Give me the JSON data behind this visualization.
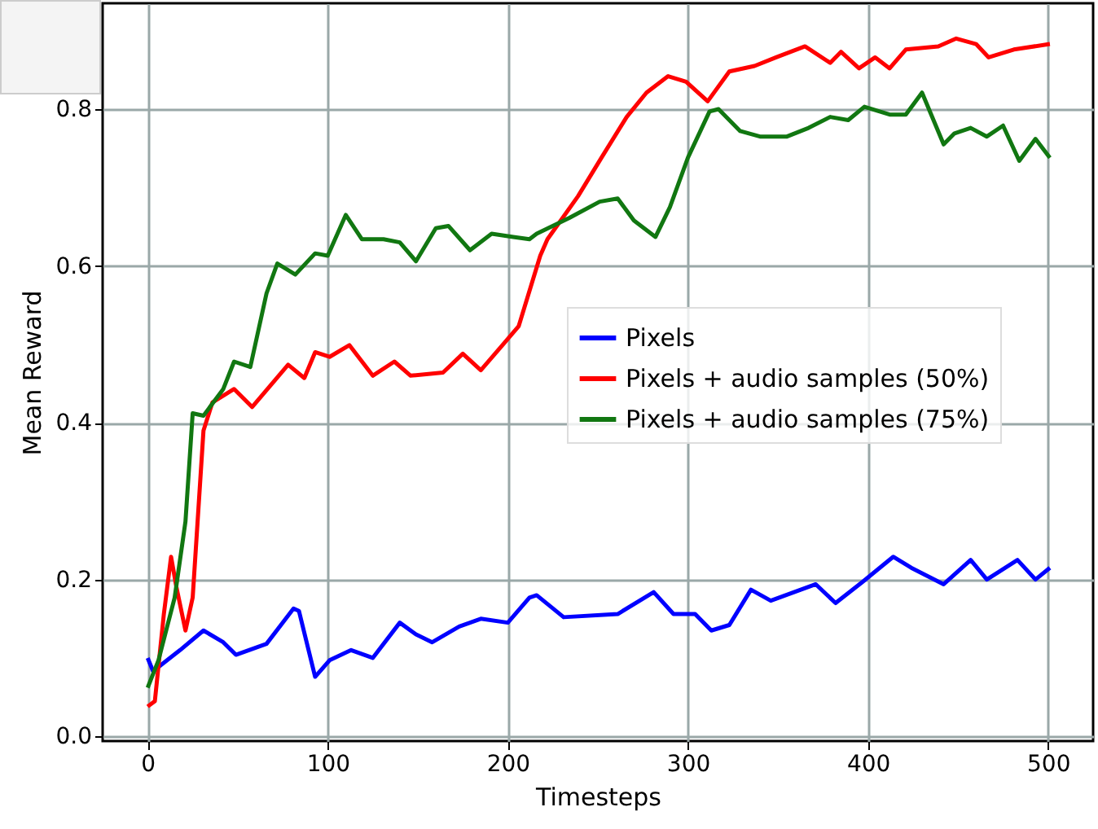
{
  "chart_data": {
    "type": "line",
    "xlabel": "Timesteps",
    "ylabel": "Mean Reward",
    "xlim": [
      -25,
      525
    ],
    "ylim": [
      -0.006,
      0.935
    ],
    "xticks": [
      0,
      100,
      200,
      300,
      400,
      500
    ],
    "yticks": [
      {
        "value": 0,
        "label": "0.0"
      },
      0.2,
      0.4,
      0.6,
      0.8
    ],
    "grid": true,
    "legend": "right",
    "line_style": "solid",
    "series": [
      {
        "name": "Pixels",
        "color": "#0000ff",
        "x": [
          0,
          3,
          18,
          31,
          42,
          49,
          66,
          81,
          84,
          93,
          101,
          113,
          125,
          140,
          149,
          158,
          173,
          185,
          200,
          212,
          216,
          231,
          261,
          281,
          292,
          304,
          313,
          323,
          335,
          346,
          371,
          382,
          397,
          414,
          424,
          442,
          457,
          466,
          483,
          493,
          501
        ],
        "values": [
          0.1,
          0.083,
          0.11,
          0.135,
          0.12,
          0.104,
          0.118,
          0.163,
          0.16,
          0.076,
          0.097,
          0.11,
          0.1,
          0.145,
          0.13,
          0.12,
          0.14,
          0.15,
          0.145,
          0.177,
          0.18,
          0.152,
          0.156,
          0.184,
          0.156,
          0.156,
          0.135,
          0.142,
          0.187,
          0.173,
          0.194,
          0.17,
          0.197,
          0.229,
          0.215,
          0.194,
          0.225,
          0.2,
          0.225,
          0.2,
          0.215
        ]
      },
      {
        "name": "Pixels + audio samples (50%)",
        "color": "#ff0000",
        "x": [
          0,
          4,
          9,
          13,
          16,
          21,
          25,
          31,
          36,
          48,
          58,
          78,
          87,
          93,
          101,
          112,
          125,
          137,
          146,
          164,
          175,
          185,
          197,
          206,
          218,
          222,
          239,
          252,
          266,
          277,
          289,
          299,
          311,
          323,
          337,
          349,
          365,
          379,
          385,
          395,
          404,
          412,
          421,
          439,
          449,
          460,
          467,
          481,
          501
        ],
        "values": [
          0.038,
          0.045,
          0.156,
          0.229,
          0.19,
          0.135,
          0.177,
          0.39,
          0.426,
          0.443,
          0.42,
          0.474,
          0.457,
          0.49,
          0.484,
          0.499,
          0.46,
          0.478,
          0.46,
          0.464,
          0.488,
          0.467,
          0.499,
          0.523,
          0.613,
          0.634,
          0.689,
          0.738,
          0.79,
          0.821,
          0.842,
          0.835,
          0.81,
          0.848,
          0.855,
          0.866,
          0.88,
          0.859,
          0.873,
          0.852,
          0.866,
          0.852,
          0.876,
          0.88,
          0.89,
          0.883,
          0.866,
          0.876,
          0.883
        ]
      },
      {
        "name": "Pixels + audio samples (75%)",
        "color": "#117711",
        "x": [
          0,
          6,
          15,
          21,
          25,
          31,
          42,
          48,
          57,
          66,
          72,
          82,
          93,
          100,
          110,
          119,
          131,
          140,
          149,
          160,
          167,
          179,
          191,
          203,
          212,
          216,
          234,
          251,
          261,
          270,
          282,
          290,
          300,
          312,
          317,
          329,
          340,
          355,
          367,
          379,
          389,
          398,
          412,
          421,
          430,
          442,
          448,
          457,
          466,
          475,
          484,
          493,
          501
        ],
        "values": [
          0.062,
          0.097,
          0.177,
          0.274,
          0.412,
          0.409,
          0.443,
          0.478,
          0.471,
          0.565,
          0.603,
          0.589,
          0.616,
          0.613,
          0.665,
          0.634,
          0.634,
          0.63,
          0.606,
          0.648,
          0.651,
          0.62,
          0.641,
          0.637,
          0.634,
          0.641,
          0.661,
          0.682,
          0.686,
          0.658,
          0.637,
          0.675,
          0.738,
          0.797,
          0.8,
          0.772,
          0.765,
          0.765,
          0.776,
          0.79,
          0.786,
          0.803,
          0.793,
          0.793,
          0.821,
          0.755,
          0.769,
          0.776,
          0.765,
          0.779,
          0.734,
          0.762,
          0.738
        ]
      }
    ]
  }
}
